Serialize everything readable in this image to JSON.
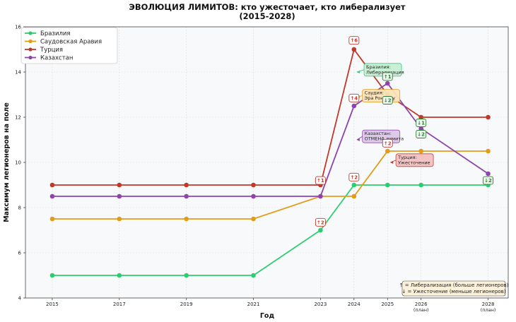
{
  "chart_data": {
    "type": "line",
    "title_line1": "ЭВОЛЮЦИЯ ЛИМИТОВ: кто ужесточает, кто либерализует",
    "title_line2": "(2015-2028)",
    "xlabel": "Год",
    "ylabel": "Максимум легионеров на поле",
    "ylim": [
      4,
      16
    ],
    "yticks": [
      4,
      6,
      8,
      10,
      12,
      14,
      16
    ],
    "x": [
      2015,
      2017,
      2019,
      2021,
      2023,
      2024,
      2025,
      2026,
      2028
    ],
    "x_tick_labels": [
      "2015",
      "2017",
      "2019",
      "2021",
      "2023",
      "2024",
      "2025",
      "2026",
      "2028"
    ],
    "x_tick_sublabels": [
      "",
      "",
      "",
      "",
      "",
      "",
      "",
      "(план)",
      "(план)"
    ],
    "grid": true,
    "legend_position": "top-left",
    "series": [
      {
        "name": "Бразилия",
        "color": "#2ecc71",
        "values": [
          5,
          5,
          5,
          5,
          7,
          9,
          9,
          9,
          9
        ]
      },
      {
        "name": "Саудовская Аравия",
        "color": "#e39c1a",
        "values": [
          7.5,
          7.5,
          7.5,
          7.5,
          8.5,
          8.5,
          10.5,
          10.5,
          10.5
        ]
      },
      {
        "name": "Турция",
        "color": "#c0392b",
        "values": [
          9,
          9,
          9,
          9,
          9,
          15,
          13,
          12,
          12
        ]
      },
      {
        "name": "Казахстан",
        "color": "#8e44ad",
        "values": [
          8.5,
          8.5,
          8.5,
          8.5,
          8.5,
          12.5,
          13.5,
          11.5,
          9.5
        ]
      }
    ],
    "badges": [
      {
        "text": "↑1",
        "x": 2023,
        "y": 9.2,
        "kind": "up"
      },
      {
        "text": "↑2",
        "x": 2023,
        "y": 7.35,
        "kind": "up"
      },
      {
        "text": "↑6",
        "x": 2024,
        "y": 15.4,
        "kind": "up"
      },
      {
        "text": "↑4",
        "x": 2024,
        "y": 12.85,
        "kind": "up"
      },
      {
        "text": "↑2",
        "x": 2024,
        "y": 9.35,
        "kind": "up"
      },
      {
        "text": "↑1",
        "x": 2025,
        "y": 13.8,
        "kind": "up-green"
      },
      {
        "text": "↓2",
        "x": 2025,
        "y": 12.75,
        "kind": "down"
      },
      {
        "text": "↑2",
        "x": 2025,
        "y": 10.85,
        "kind": "up"
      },
      {
        "text": "↓1",
        "x": 2026,
        "y": 11.75,
        "kind": "down"
      },
      {
        "text": "↓2",
        "x": 2026,
        "y": 11.25,
        "kind": "down"
      },
      {
        "text": "↓2",
        "x": 2028,
        "y": 9.2,
        "kind": "down"
      }
    ],
    "annotations": [
      {
        "lines": [
          "Бразилия:",
          "Либерализация"
        ],
        "x": 2024.3,
        "y": 14.1,
        "target_x": 2024,
        "target_y": 14.0,
        "color": "#2ecc71",
        "fill": "#c8efd6"
      },
      {
        "lines": [
          "Саудия:",
          "Эра Роналду"
        ],
        "x": 2024.25,
        "y": 12.95,
        "target_x": 2024,
        "target_y": 12.9,
        "color": "#e39c1a",
        "fill": "#fbe3b8"
      },
      {
        "lines": [
          "Казахстан:",
          "ОТМЕНА лимита"
        ],
        "x": 2024.25,
        "y": 11.15,
        "target_x": 2024,
        "target_y": 11.0,
        "color": "#8e44ad",
        "fill": "#dcc8e8"
      },
      {
        "lines": [
          "Турция:",
          "Ужесточение"
        ],
        "x": 2025.25,
        "y": 10.1,
        "target_x": 2025,
        "target_y": 10.0,
        "color": "#c0392b",
        "fill": "#f4c2c2"
      }
    ],
    "note_lines": [
      "↑ = Либерализация (больше легионеров)",
      "↓ = Ужесточение (меньше легионеров)"
    ]
  }
}
